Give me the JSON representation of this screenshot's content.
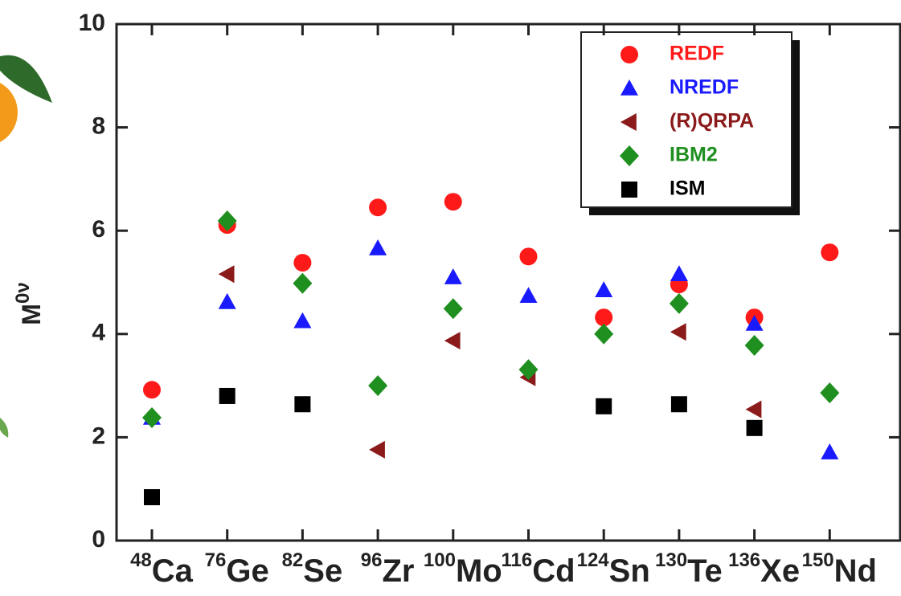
{
  "chart_data": {
    "type": "scatter",
    "ylabel": "M",
    "ylabel_superscript": "0ν",
    "mass_numbers": [
      "48",
      "76",
      "82",
      "96",
      "100",
      "116",
      "124",
      "130",
      "136",
      "150"
    ],
    "categories": [
      "Ca",
      "Ge",
      "Se",
      "Zr",
      "Mo",
      "Cd",
      "Sn",
      "Te",
      "Xe",
      "Nd"
    ],
    "ylim": [
      0,
      10
    ],
    "yticks": [
      0,
      2,
      4,
      6,
      8,
      10
    ],
    "series": [
      {
        "name": "REDF",
        "color": "#ff1a1a",
        "marker": "circle",
        "values": [
          2.92,
          6.11,
          5.38,
          6.45,
          6.56,
          5.5,
          4.32,
          4.96,
          4.32,
          5.58
        ]
      },
      {
        "name": "NREDF",
        "color": "#1a1aff",
        "marker": "triangle-up",
        "values": [
          2.38,
          4.62,
          4.25,
          5.66,
          5.1,
          4.74,
          4.85,
          5.16,
          4.2,
          1.71
        ]
      },
      {
        "name": "(R)QRPA",
        "color": "#8b1a1a",
        "marker": "triangle-left",
        "values": [
          null,
          5.16,
          null,
          1.76,
          3.87,
          3.16,
          null,
          4.04,
          2.54,
          null
        ]
      },
      {
        "name": "IBM2",
        "color": "#1f8f1f",
        "marker": "diamond",
        "values": [
          2.38,
          6.19,
          4.98,
          3.0,
          4.49,
          3.31,
          4.0,
          4.59,
          3.78,
          2.86
        ]
      },
      {
        "name": "ISM",
        "color": "#000000",
        "marker": "square",
        "values": [
          0.84,
          2.8,
          2.64,
          null,
          null,
          null,
          2.6,
          2.64,
          2.18,
          null
        ]
      }
    ]
  }
}
